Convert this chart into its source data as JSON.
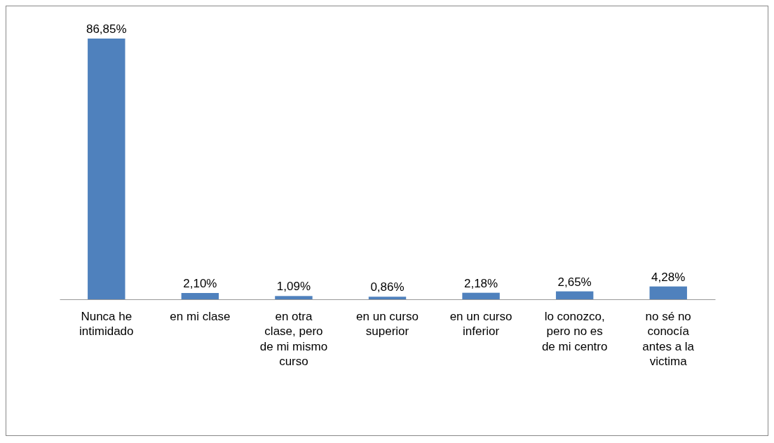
{
  "chart_data": {
    "type": "bar",
    "categories": [
      "Nunca he intimidado",
      "en mi clase",
      "en otra clase, pero de mi mismo curso",
      "en un curso superior",
      "en un curso inferior",
      "lo conozco, pero no es de mi centro",
      "no sé no conocía antes a la victima"
    ],
    "values": [
      86.85,
      2.1,
      1.09,
      0.86,
      2.18,
      2.65,
      4.28
    ],
    "value_labels": [
      "86,85%",
      "2,10%",
      "1,09%",
      "0,86%",
      "2,18%",
      "2,65%",
      "4,28%"
    ],
    "color": "#4f81bd"
  }
}
